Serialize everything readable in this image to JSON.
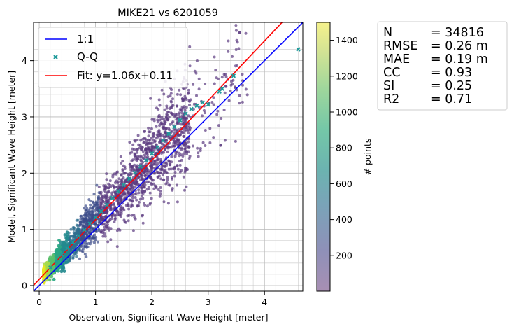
{
  "chart_data": {
    "type": "scatter",
    "title": "MIKE21 vs 6201059",
    "xlabel": "Observation, Significant Wave Height [meter]",
    "ylabel": "Model, Significant Wave Height [meter]",
    "xlim": [
      -0.1,
      4.68
    ],
    "ylim": [
      -0.1,
      4.68
    ],
    "grid": true,
    "x_ticks": [
      0,
      1,
      2,
      3,
      4
    ],
    "y_ticks": [
      0,
      1,
      2,
      3,
      4
    ],
    "legend": {
      "placement": "top-left",
      "entries": [
        {
          "label": "1:1",
          "color": "#0000ff",
          "marker": "line"
        },
        {
          "label": "Q-Q",
          "color": "#1f9a9a",
          "marker": "x"
        },
        {
          "label": "Fit: y=1.06x+0.11",
          "color": "#ff0000",
          "marker": "line"
        }
      ]
    },
    "lines": {
      "identity": {
        "slope": 1.0,
        "intercept": 0.0,
        "color": "#0000ff"
      },
      "fit": {
        "slope": 1.06,
        "intercept": 0.11,
        "color": "#ff0000"
      }
    },
    "qq": {
      "x": [
        0.2,
        0.3,
        0.4,
        0.5,
        0.6,
        0.7,
        0.8,
        0.9,
        1.0,
        1.1,
        1.2,
        1.3,
        1.4,
        1.5,
        1.6,
        1.7,
        1.8,
        1.9,
        2.0,
        2.1,
        2.2,
        2.3,
        2.4,
        2.5,
        2.6,
        2.7,
        2.8,
        2.9,
        3.0,
        3.2,
        3.25,
        3.45,
        4.6
      ],
      "y": [
        0.32,
        0.43,
        0.55,
        0.66,
        0.77,
        0.88,
        0.99,
        1.1,
        1.21,
        1.32,
        1.44,
        1.56,
        1.68,
        1.79,
        1.9,
        2.01,
        2.12,
        2.23,
        2.35,
        2.46,
        2.58,
        2.7,
        2.82,
        2.94,
        3.06,
        3.14,
        3.2,
        3.26,
        3.22,
        3.45,
        3.5,
        3.73,
        4.2
      ]
    },
    "colorbar": {
      "label": "# points",
      "tick_labels": [
        "200",
        "400",
        "600",
        "800",
        "1000",
        "1200",
        "1400"
      ],
      "tick_values": [
        200,
        400,
        600,
        800,
        1000,
        1200,
        1400
      ],
      "range": [
        0,
        1500
      ],
      "colormap": "viridis"
    },
    "stats": [
      {
        "name": "N",
        "value": "= 34816"
      },
      {
        "name": "RMSE",
        "value": "= 0.26 m"
      },
      {
        "name": "MAE",
        "value": "= 0.19 m"
      },
      {
        "name": "CC",
        "value": "= 0.93"
      },
      {
        "name": "SI",
        "value": "= 0.25"
      },
      {
        "name": "R2",
        "value": "= 0.71"
      }
    ]
  }
}
